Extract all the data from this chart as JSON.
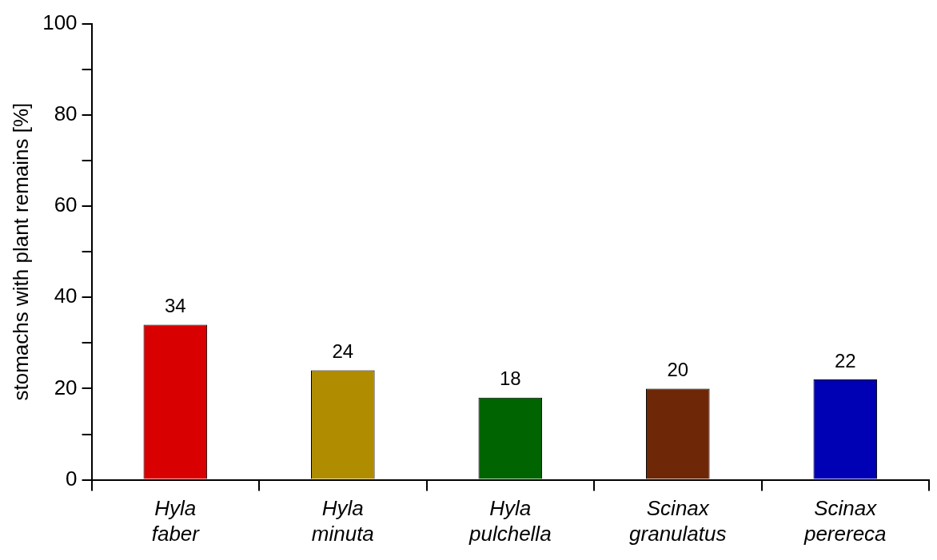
{
  "chart_data": {
    "type": "bar",
    "ylabel": "stomachs with plant remains [%]",
    "categories": [
      "Hyla faber",
      "Hyla minuta",
      "Hyla pulchella",
      "Scinax granulatus",
      "Scinax perereca"
    ],
    "values": [
      34,
      24,
      18,
      20,
      22
    ],
    "colors": [
      "#d80000",
      "#b08c00",
      "#006400",
      "#6e2808",
      "#0000b4"
    ],
    "ylim": [
      0,
      100
    ],
    "yticks": [
      0,
      {
        "value": 10,
        "label": null
      },
      20,
      {
        "value": 30,
        "label": null
      },
      40,
      {
        "value": 50,
        "label": null
      },
      60,
      {
        "value": 70,
        "label": null
      },
      80,
      {
        "value": 90,
        "label": null
      },
      100
    ],
    "data_labels": true,
    "grid": false,
    "legend": false
  }
}
